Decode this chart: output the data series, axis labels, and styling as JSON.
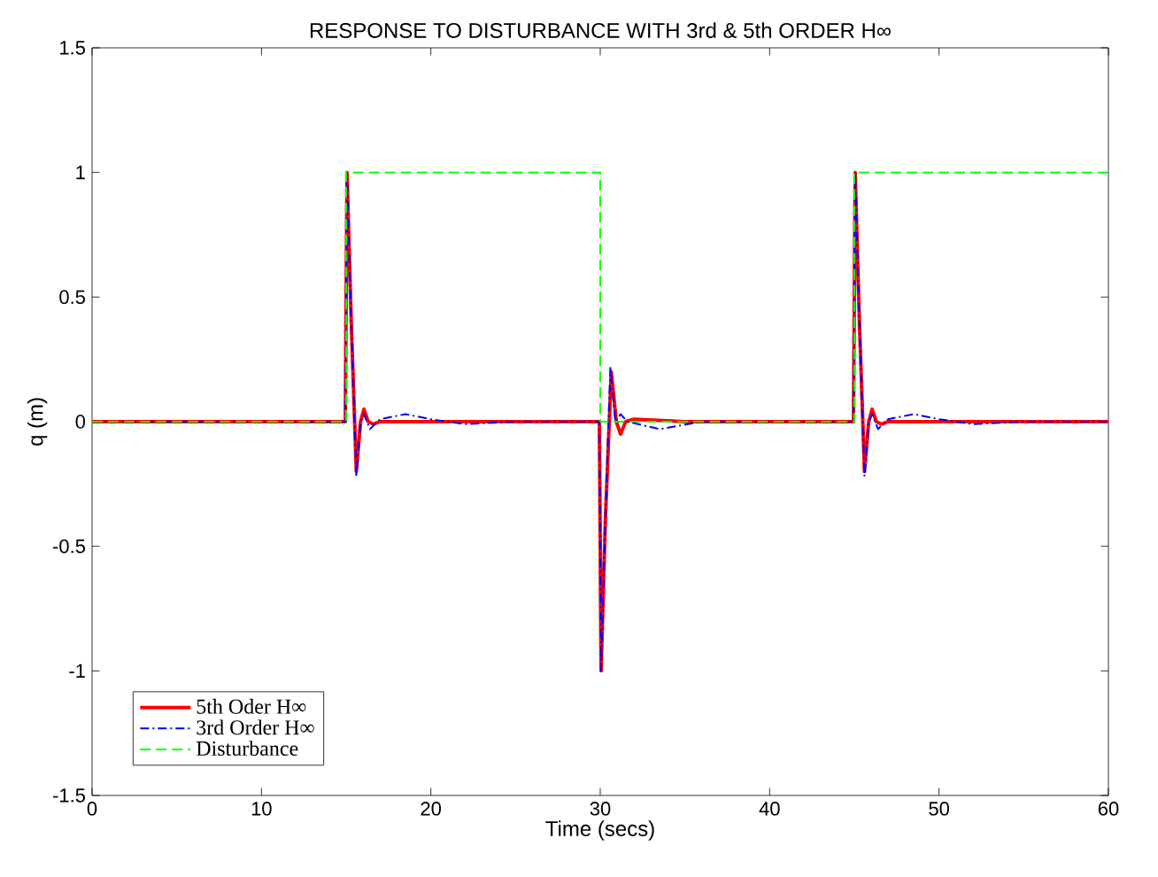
{
  "chart_data": {
    "type": "line",
    "title": "RESPONSE TO DISTURBANCE WITH 3rd & 5th ORDER H∞",
    "xlabel": "Time (secs)",
    "ylabel": "q (m)",
    "xlim": [
      0,
      60
    ],
    "ylim": [
      -1.5,
      1.5
    ],
    "xticks": [
      0,
      10,
      20,
      30,
      40,
      50,
      60
    ],
    "yticks": [
      -1.5,
      -1,
      -0.5,
      0,
      0.5,
      1,
      1.5
    ],
    "legend": "bottom left",
    "grid": false,
    "series": [
      {
        "name": "5th Oder H∞",
        "color": "#ff0000",
        "line_style": "solid",
        "x": [
          0,
          14.95,
          15.05,
          15.3,
          15.6,
          15.85,
          16.05,
          16.3,
          16.6,
          17,
          20,
          29.95,
          30.05,
          30.3,
          30.65,
          30.95,
          31.2,
          31.5,
          32,
          35,
          44.95,
          45.05,
          45.3,
          45.6,
          45.85,
          46.05,
          46.3,
          46.6,
          47,
          50,
          60
        ],
        "values": [
          0,
          0,
          1,
          0.4,
          -0.2,
          0,
          0.05,
          0,
          -0.01,
          0,
          0,
          0,
          -1,
          -0.4,
          0.2,
          0,
          -0.05,
          0,
          0.01,
          0,
          0,
          1,
          0.4,
          -0.2,
          0,
          0.05,
          0,
          -0.01,
          0,
          0,
          0
        ]
      },
      {
        "name": "3rd Order H∞",
        "color": "#0000ff",
        "line_style": "dashdot",
        "x": [
          0,
          14.95,
          15.05,
          15.3,
          15.6,
          15.85,
          16.05,
          16.4,
          17,
          18.5,
          20,
          22,
          25,
          29.95,
          30.05,
          30.3,
          30.6,
          30.9,
          31.2,
          31.6,
          33.5,
          36,
          44.95,
          45.05,
          45.3,
          45.6,
          45.85,
          46.05,
          46.4,
          47,
          48.5,
          50,
          52,
          55,
          60
        ],
        "values": [
          0,
          0,
          1,
          0.4,
          -0.22,
          0,
          0.03,
          -0.03,
          0.01,
          0.03,
          0.01,
          -0.01,
          0,
          0,
          -1,
          -0.4,
          0.22,
          0,
          0.03,
          0,
          -0.03,
          0,
          0,
          1,
          0.4,
          -0.22,
          0,
          0.03,
          -0.03,
          0.01,
          0.03,
          0.01,
          -0.01,
          0,
          0
        ]
      },
      {
        "name": "Disturbance",
        "color": "#00ff00",
        "line_style": "dashed",
        "x": [
          0,
          15,
          15,
          30,
          30,
          45,
          45,
          60
        ],
        "values": [
          0,
          0,
          1,
          1,
          0,
          0,
          1,
          1
        ]
      }
    ]
  }
}
